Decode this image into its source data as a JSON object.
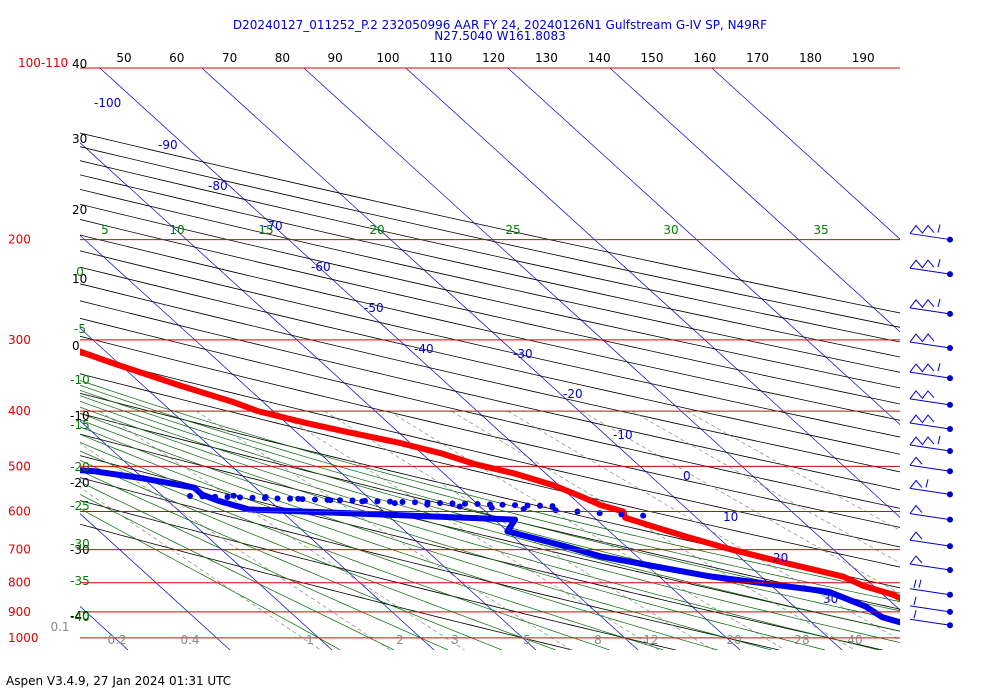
{
  "title_line1": "D20240127_011252_P.2 232050996 AAR FY 24, 20240126N1 Gulfstream G-IV SP, N49RF",
  "title_line2": "N27.5040 W161.8083",
  "footer": "Aspen V3.4.9, 27 Jan 2024  01:31 UTC",
  "chart_data": {
    "type": "skew-t log-p sounding",
    "pressure_axis": {
      "label_top": "100-110",
      "levels": [
        200,
        300,
        400,
        500,
        600,
        700,
        800,
        900,
        1000
      ]
    },
    "altitude_kft": [
      "40",
      "30",
      "20",
      "10",
      "0"
    ],
    "height_ticks": [
      "-10",
      "-20",
      "-30",
      "-40"
    ],
    "x_top_ticks": [
      50,
      60,
      70,
      80,
      90,
      100,
      110,
      120,
      130,
      140,
      150,
      160,
      170,
      180,
      190
    ],
    "isotherm_labels": [
      -100,
      -90,
      -80,
      -70,
      -60,
      -50,
      -40,
      -30,
      -20,
      -10,
      0,
      10,
      20,
      30
    ],
    "dry_adiabat_labels": [
      5,
      10,
      15,
      20,
      25,
      30,
      35
    ],
    "moist_adiabat_labels": [
      0,
      -5,
      -10,
      -15,
      -20,
      -25,
      -30,
      -35,
      -40
    ],
    "mixing_ratio_labels": [
      "0.1",
      "0.2",
      "0.4",
      "1",
      "2",
      "3",
      "5",
      "8",
      "12",
      "20",
      "28",
      "40"
    ],
    "series": [
      {
        "name": "temperature",
        "color": "#ff0000",
        "points": [
          [
            210,
            -49
          ],
          [
            220,
            -47.5
          ],
          [
            250,
            -43.5
          ],
          [
            275,
            -39
          ],
          [
            290,
            -36
          ],
          [
            300,
            -34.5
          ],
          [
            330,
            -30.5
          ],
          [
            360,
            -26.5
          ],
          [
            385,
            -23
          ],
          [
            400,
            -21.5
          ],
          [
            420,
            -18
          ],
          [
            435,
            -15
          ],
          [
            455,
            -11
          ],
          [
            475,
            -8
          ],
          [
            495,
            -6
          ],
          [
            515,
            -3
          ],
          [
            540,
            -0.5
          ],
          [
            565,
            1
          ],
          [
            585,
            2
          ],
          [
            600,
            3.5
          ],
          [
            615,
            3
          ],
          [
            640,
            5
          ],
          [
            665,
            7
          ],
          [
            700,
            10
          ],
          [
            740,
            14
          ],
          [
            780,
            18
          ],
          [
            810,
            19
          ],
          [
            840,
            21
          ],
          [
            880,
            22
          ],
          [
            920,
            25
          ],
          [
            960,
            27
          ],
          [
            1000,
            29
          ],
          [
            1010,
            30
          ]
        ]
      },
      {
        "name": "dewpoint",
        "color": "#0000ee",
        "points": [
          [
            255,
            -70
          ],
          [
            270,
            -69
          ],
          [
            285,
            -66
          ],
          [
            300,
            -64
          ],
          [
            320,
            -63
          ],
          [
            345,
            -62
          ],
          [
            370,
            -59
          ],
          [
            390,
            -57
          ],
          [
            405,
            -54
          ],
          [
            420,
            -47
          ],
          [
            435,
            -46
          ],
          [
            450,
            -47
          ],
          [
            460,
            -45
          ],
          [
            470,
            -50
          ],
          [
            480,
            -50
          ],
          [
            490,
            -48
          ],
          [
            500,
            -50
          ],
          [
            510,
            -44
          ],
          [
            525,
            -40
          ],
          [
            545,
            -36
          ],
          [
            560,
            -36
          ],
          [
            575,
            -35
          ],
          [
            595,
            -33
          ],
          [
            620,
            -8
          ],
          [
            650,
            -10
          ],
          [
            690,
            -6
          ],
          [
            720,
            -3.5
          ],
          [
            780,
            5
          ],
          [
            830,
            15
          ],
          [
            880,
            17
          ],
          [
            920,
            17.5
          ],
          [
            960,
            20
          ],
          [
            1000,
            21
          ],
          [
            1010,
            23
          ]
        ]
      },
      {
        "name": "dewpoint-dotted",
        "color": "#0000ee",
        "points": [
          [
            560,
            -36
          ],
          [
            563,
            -33
          ],
          [
            566,
            -30
          ],
          [
            570,
            -27
          ],
          [
            573,
            -24
          ],
          [
            576,
            -21
          ],
          [
            580,
            -18
          ],
          [
            584,
            -15
          ],
          [
            588,
            -12
          ],
          [
            591,
            -9
          ],
          [
            594,
            -6
          ],
          [
            597,
            -3
          ],
          [
            600,
            -1
          ],
          [
            604,
            1
          ],
          [
            607,
            3
          ],
          [
            610,
            5
          ]
        ]
      }
    ],
    "wind_barbs": [
      {
        "p": 200,
        "speed_kt": 115
      },
      {
        "p": 230,
        "speed_kt": 110
      },
      {
        "p": 270,
        "speed_kt": 110
      },
      {
        "p": 310,
        "speed_kt": 105
      },
      {
        "p": 350,
        "speed_kt": 110
      },
      {
        "p": 390,
        "speed_kt": 100
      },
      {
        "p": 430,
        "speed_kt": 105
      },
      {
        "p": 470,
        "speed_kt": 110
      },
      {
        "p": 510,
        "speed_kt": 40
      },
      {
        "p": 560,
        "speed_kt": 60
      },
      {
        "p": 620,
        "speed_kt": 30
      },
      {
        "p": 690,
        "speed_kt": 25
      },
      {
        "p": 760,
        "speed_kt": 25
      },
      {
        "p": 840,
        "speed_kt": 20
      },
      {
        "p": 900,
        "speed_kt": 15
      },
      {
        "p": 950,
        "speed_kt": 10
      }
    ]
  }
}
